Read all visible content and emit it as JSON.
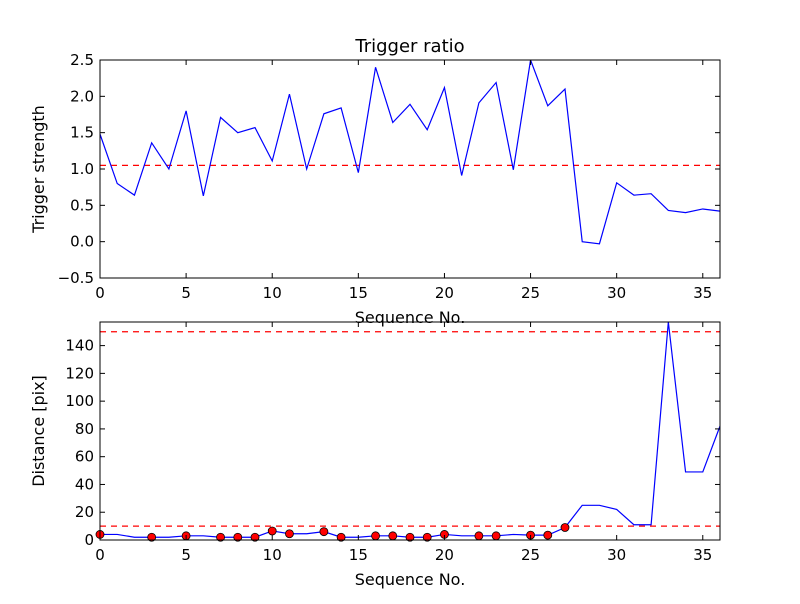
{
  "chart_data": [
    {
      "type": "line",
      "title": "Trigger ratio",
      "xlabel": "Sequence No.",
      "ylabel": "Trigger strength",
      "xlim": [
        0,
        36
      ],
      "ylim": [
        -0.5,
        2.5
      ],
      "x_ticks": [
        "0",
        "5",
        "10",
        "15",
        "20",
        "25",
        "30",
        "35"
      ],
      "y_ticks": [
        "−0.5",
        "0.0",
        "0.5",
        "1.0",
        "1.5",
        "2.0",
        "2.5"
      ],
      "grid": false,
      "line_color": "#0000ff",
      "threshold_color": "#ff0000",
      "threshold": 1.05,
      "series": [
        {
          "x": [
            0,
            1,
            2,
            3,
            4,
            5,
            6,
            7,
            8,
            9,
            10,
            11,
            12,
            13,
            14,
            15,
            16,
            17,
            18,
            19,
            20,
            21,
            22,
            23,
            24,
            25,
            26,
            27,
            28,
            29,
            30,
            31,
            32,
            33,
            34,
            35,
            36
          ],
          "values": [
            1.48,
            0.8,
            0.64,
            1.36,
            1.0,
            1.8,
            0.63,
            1.71,
            1.5,
            1.57,
            1.11,
            2.03,
            1.0,
            1.76,
            1.84,
            0.95,
            2.4,
            1.64,
            1.89,
            1.54,
            2.12,
            0.91,
            1.91,
            2.19,
            0.99,
            2.5,
            1.87,
            2.1,
            0.0,
            -0.03,
            0.81,
            0.64,
            0.66,
            0.43,
            0.4,
            0.45,
            0.42
          ]
        }
      ]
    },
    {
      "type": "line",
      "title": "",
      "xlabel": "Sequence No.",
      "ylabel": "Distance [pix]",
      "xlim": [
        0,
        36
      ],
      "ylim": [
        0,
        157
      ],
      "x_ticks": [
        "0",
        "5",
        "10",
        "15",
        "20",
        "25",
        "30",
        "35"
      ],
      "y_ticks": [
        "0",
        "20",
        "40",
        "60",
        "80",
        "100",
        "120",
        "140"
      ],
      "grid": false,
      "line_color": "#0000ff",
      "marker_color": "#ff0000",
      "threshold_color": "#ff0000",
      "thresholds": [
        10,
        150
      ],
      "series": [
        {
          "x": [
            0,
            1,
            2,
            3,
            4,
            5,
            6,
            7,
            8,
            9,
            10,
            11,
            12,
            13,
            14,
            15,
            16,
            17,
            18,
            19,
            20,
            21,
            22,
            23,
            24,
            25,
            26,
            27,
            28,
            29,
            30,
            31,
            32,
            33,
            34,
            35,
            36
          ],
          "values": [
            4,
            4,
            2,
            2,
            2,
            3,
            3,
            2,
            2,
            2,
            6.5,
            4.5,
            4.5,
            6,
            2,
            2,
            3,
            3,
            2,
            2,
            4,
            3,
            3,
            3,
            4,
            3.5,
            3.5,
            9,
            25,
            25,
            22,
            11,
            11,
            157,
            49,
            49,
            82
          ]
        },
        {
          "x": [
            0,
            3,
            5,
            7,
            8,
            9,
            10,
            11,
            13,
            14,
            16,
            17,
            18,
            19,
            20,
            22,
            23,
            25,
            26,
            27
          ],
          "values": [
            4,
            2,
            3,
            2,
            2,
            2,
            6.5,
            4.5,
            6,
            2,
            3,
            3,
            2,
            2,
            4,
            3,
            3,
            3.5,
            3.5,
            9
          ]
        }
      ]
    }
  ]
}
